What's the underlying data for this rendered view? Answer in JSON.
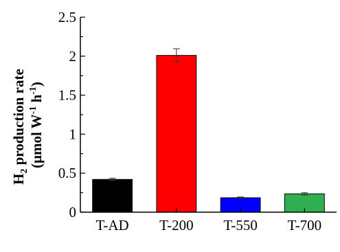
{
  "chart_data": {
    "type": "bar",
    "title": "",
    "xlabel": "",
    "ylabel_parts": {
      "line1_main": "H",
      "line1_sub": "2",
      "line1_rest": " production rate",
      "line2_a": "(μmol W",
      "line2_sup1": "-1",
      "line2_b": " h",
      "line2_sup2": "-1",
      "line2_c": ")"
    },
    "categories": [
      "T-AD",
      "T-200",
      "T-550",
      "T-700"
    ],
    "values": [
      0.42,
      2.01,
      0.185,
      0.235
    ],
    "errors": [
      0.015,
      0.085,
      0.01,
      0.015
    ],
    "colors": [
      "#000000",
      "#ff0000",
      "#0000ff",
      "#2eb050"
    ],
    "ylim": [
      0,
      2.5
    ],
    "yticks": [
      0,
      0.5,
      1,
      1.5,
      2,
      2.5
    ],
    "ytick_labels": [
      "0",
      "0.5",
      "1",
      "1.5",
      "2",
      "2.5"
    ],
    "grid": false,
    "legend": "none"
  }
}
